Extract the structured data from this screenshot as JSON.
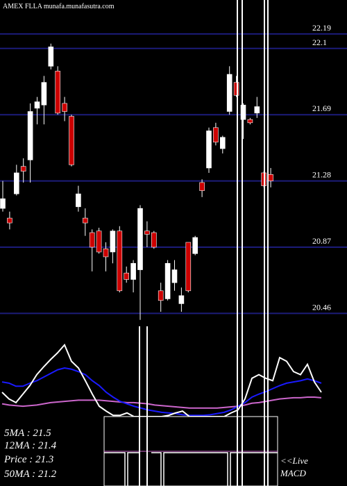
{
  "chart_data": {
    "type": "candlestick",
    "title": "AMEX  FLLA munafa.munafasutra.com",
    "ylim": [
      20.38,
      22.4
    ],
    "yticks": [
      22.19,
      22.1,
      21.69,
      21.28,
      20.87,
      20.46
    ],
    "grid": true,
    "up_color": "#ffffff",
    "down_color": "#cc0000",
    "open": [
      21.11,
      21.05,
      21.2,
      21.37,
      21.41,
      21.73,
      21.75,
      21.99,
      21.96,
      21.76,
      21.68,
      21.12,
      21.05,
      20.96,
      20.97,
      20.86,
      20.84,
      20.97,
      20.71,
      20.67,
      20.73,
      20.97,
      20.96,
      20.6,
      20.55,
      20.65,
      20.52,
      20.9,
      20.83,
      21.27,
      21.36,
      21.61,
      21.48,
      21.71,
      21.89,
      21.66,
      21.66,
      21.7,
      21.33,
      21.32
    ],
    "close": [
      21.17,
      21.02,
      21.33,
      21.34,
      21.71,
      21.77,
      21.89,
      22.11,
      21.7,
      21.71,
      21.38,
      21.2,
      21.02,
      20.87,
      20.84,
      20.81,
      20.97,
      20.6,
      20.67,
      20.77,
      21.11,
      20.95,
      20.87,
      20.54,
      20.77,
      20.73,
      20.57,
      20.6,
      20.93,
      21.22,
      21.59,
      21.52,
      21.55,
      21.94,
      21.81,
      21.75,
      21.64,
      21.74,
      21.25,
      21.28
    ],
    "high": [
      21.28,
      21.09,
      21.38,
      21.42,
      21.76,
      21.8,
      21.93,
      22.13,
      21.99,
      21.8,
      21.69,
      21.25,
      21.11,
      20.98,
      20.99,
      20.9,
      20.98,
      21.0,
      20.75,
      20.79,
      21.13,
      21.03,
      20.97,
      20.65,
      20.79,
      20.79,
      20.62,
      20.9,
      20.94,
      21.29,
      21.61,
      21.64,
      21.56,
      21.99,
      21.93,
      21.76,
      21.67,
      21.8,
      21.34,
      21.36
    ],
    "low": [
      21.09,
      20.98,
      21.19,
      21.27,
      21.27,
      21.63,
      21.63,
      21.97,
      21.69,
      21.65,
      21.37,
      21.09,
      20.94,
      20.72,
      20.83,
      20.72,
      20.77,
      20.59,
      20.65,
      20.59,
      20.42,
      20.87,
      20.86,
      20.47,
      20.54,
      20.6,
      20.47,
      20.59,
      20.82,
      21.18,
      21.33,
      21.5,
      21.45,
      21.69,
      21.8,
      21.54,
      21.63,
      21.67,
      21.24,
      21.24
    ],
    "ma_ylim": [
      21.9,
      20.7
    ],
    "ma_series": [
      {
        "name": "5MA",
        "color": "#ffffff",
        "values": [
          21.1,
          20.99,
          20.93,
          21.07,
          21.21,
          21.39,
          21.52,
          21.64,
          21.75,
          21.88,
          21.61,
          21.5,
          21.29,
          21.07,
          20.87,
          20.79,
          20.72,
          20.72,
          20.76,
          20.7,
          20.7,
          20.7,
          20.7,
          20.7,
          20.72,
          20.76,
          20.79,
          20.7,
          20.7,
          20.7,
          20.7,
          20.7,
          20.7,
          20.76,
          20.81,
          20.99,
          21.33,
          21.39,
          21.33,
          21.29,
          21.67,
          21.61,
          21.44,
          21.39,
          21.56,
          21.27,
          21.1
        ]
      },
      {
        "name": "12MA",
        "color": "#1a1aff",
        "values": [
          21.27,
          21.25,
          21.2,
          21.2,
          21.25,
          21.29,
          21.35,
          21.41,
          21.47,
          21.5,
          21.48,
          21.44,
          21.39,
          21.29,
          21.21,
          21.1,
          21.02,
          20.95,
          20.91,
          20.87,
          20.84,
          20.81,
          20.79,
          20.77,
          20.76,
          20.75,
          20.73,
          20.72,
          20.72,
          20.72,
          20.73,
          20.75,
          20.77,
          20.81,
          20.87,
          20.93,
          21.02,
          21.07,
          21.11,
          21.16,
          21.21,
          21.25,
          21.27,
          21.29,
          21.32,
          21.29,
          21.25
        ]
      },
      {
        "name": "50MA",
        "color": "#cc66cc",
        "values": [
          20.91,
          20.89,
          20.88,
          20.87,
          20.88,
          20.89,
          20.91,
          20.93,
          20.94,
          20.95,
          20.96,
          20.97,
          20.97,
          20.97,
          20.97,
          20.96,
          20.95,
          20.94,
          20.93,
          20.93,
          20.92,
          20.91,
          20.89,
          20.88,
          20.87,
          20.86,
          20.85,
          20.84,
          20.84,
          20.84,
          20.84,
          20.84,
          20.85,
          20.86,
          20.87,
          20.89,
          20.92,
          20.93,
          20.95,
          20.97,
          20.99,
          21.0,
          21.01,
          21.01,
          21.02,
          21.02,
          21.01
        ]
      }
    ],
    "stat_labels": [
      "5MA : 21.5",
      "12MA : 21.4",
      "Price   : 21.3",
      "50MA : 21.2"
    ],
    "live_label": "<<Live",
    "macd_label": "MACD"
  }
}
